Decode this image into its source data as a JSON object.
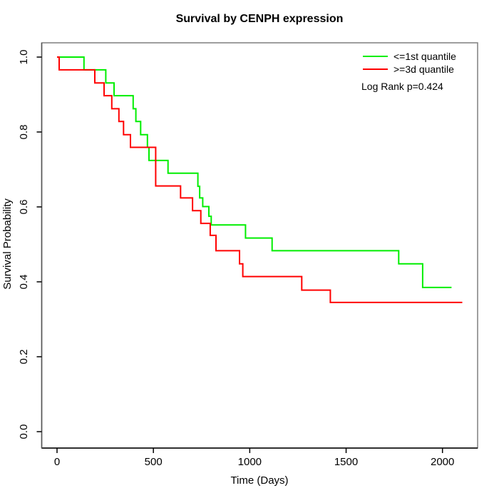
{
  "figure": {
    "title": "Survival by CENPH expression",
    "annotation": "Log Rank p=0.424"
  },
  "chart_data": {
    "type": "line",
    "subtype": "kaplan-meier-step",
    "title": "Survival by CENPH expression",
    "xlabel": "Time (Days)",
    "ylabel": "Survival Probability",
    "xlim": [
      0,
      2183
    ],
    "ylim": [
      0,
      1
    ],
    "grid": false,
    "legend_position": "top-right",
    "annotation": "Log Rank p=0.424",
    "x_ticks": [
      0,
      500,
      1000,
      1500,
      2000
    ],
    "x_tick_labels": [
      "0",
      "500",
      "1000",
      "1500",
      "2000"
    ],
    "y_ticks": [
      0.0,
      0.2,
      0.4,
      0.6,
      0.8,
      1.0
    ],
    "y_tick_labels": [
      "0.0",
      "0.2",
      "0.4",
      "0.6",
      "0.8",
      "1.0"
    ],
    "series": [
      {
        "name": "<=1st quantile",
        "color": "#00ee00",
        "points": [
          [
            0,
            1.0
          ],
          [
            140,
            0.966
          ],
          [
            253,
            0.931
          ],
          [
            296,
            0.897
          ],
          [
            395,
            0.862
          ],
          [
            409,
            0.828
          ],
          [
            434,
            0.793
          ],
          [
            469,
            0.759
          ],
          [
            477,
            0.724
          ],
          [
            576,
            0.69
          ],
          [
            731,
            0.655
          ],
          [
            740,
            0.624
          ],
          [
            756,
            0.601
          ],
          [
            788,
            0.575
          ],
          [
            800,
            0.552
          ],
          [
            978,
            0.517
          ],
          [
            1116,
            0.483
          ],
          [
            1773,
            0.448
          ],
          [
            1897,
            0.385
          ],
          [
            2047,
            0.385
          ]
        ]
      },
      {
        "name": ">=3d quantile",
        "color": "#ff0000",
        "points": [
          [
            0,
            1.0
          ],
          [
            11,
            0.966
          ],
          [
            196,
            0.931
          ],
          [
            244,
            0.897
          ],
          [
            284,
            0.862
          ],
          [
            321,
            0.828
          ],
          [
            345,
            0.793
          ],
          [
            381,
            0.759
          ],
          [
            512,
            0.656
          ],
          [
            641,
            0.624
          ],
          [
            703,
            0.59
          ],
          [
            746,
            0.556
          ],
          [
            795,
            0.524
          ],
          [
            825,
            0.483
          ],
          [
            947,
            0.448
          ],
          [
            964,
            0.414
          ],
          [
            1270,
            0.378
          ],
          [
            1418,
            0.345
          ],
          [
            2103,
            0.345
          ]
        ]
      }
    ]
  }
}
